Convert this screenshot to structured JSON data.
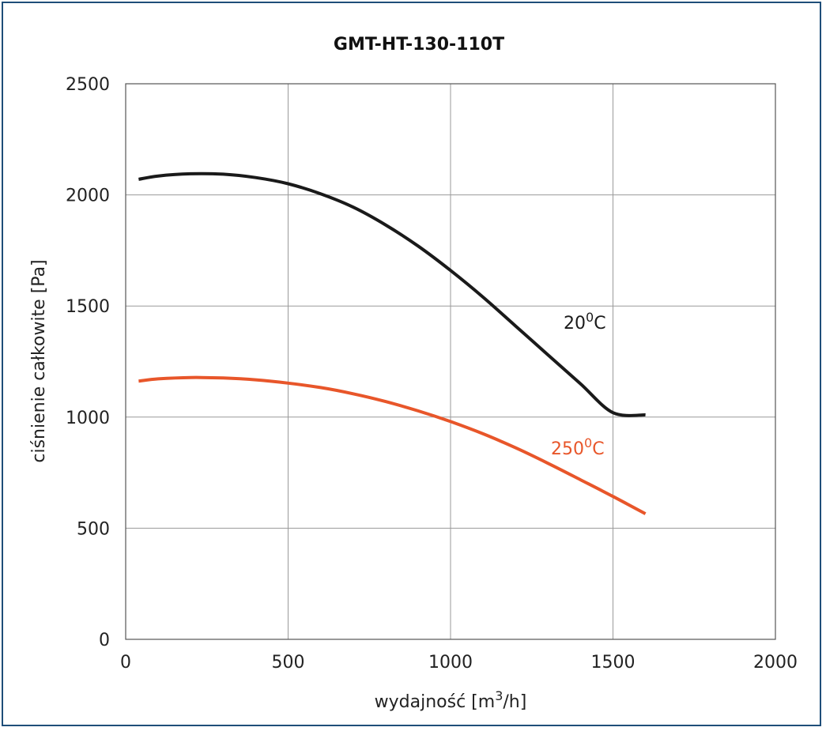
{
  "chart_data": {
    "type": "line",
    "title": "GMT-HT-130-110T",
    "xlabel_main": "wydajność [m",
    "xlabel_sup": "3",
    "xlabel_tail": "/h]",
    "ylabel": "ciśnienie całkowite [Pa]",
    "xlim": [
      0,
      2000
    ],
    "ylim": [
      0,
      2500
    ],
    "xticks": [
      0,
      500,
      1000,
      1500,
      2000
    ],
    "yticks": [
      0,
      500,
      1000,
      1500,
      2000,
      2500
    ],
    "grid": true,
    "series": [
      {
        "name": "20°C",
        "label_main": "20",
        "label_sup": "0",
        "label_tail": "C",
        "color": "#1a1a1a",
        "x": [
          40,
          100,
          200,
          300,
          400,
          500,
          600,
          700,
          800,
          900,
          1000,
          1100,
          1200,
          1300,
          1400,
          1500,
          1600
        ],
        "y": [
          2070,
          2085,
          2095,
          2093,
          2078,
          2050,
          2005,
          1945,
          1865,
          1770,
          1660,
          1540,
          1410,
          1280,
          1150,
          1020,
          1010
        ]
      },
      {
        "name": "250°C",
        "label_main": "250",
        "label_sup": "0",
        "label_tail": "C",
        "color": "#e8562a",
        "x": [
          40,
          100,
          200,
          300,
          400,
          500,
          600,
          700,
          800,
          900,
          1000,
          1100,
          1200,
          1300,
          1400,
          1500,
          1600
        ],
        "y": [
          1162,
          1172,
          1178,
          1176,
          1168,
          1153,
          1133,
          1105,
          1070,
          1028,
          980,
          925,
          862,
          792,
          718,
          643,
          565
        ]
      }
    ]
  }
}
